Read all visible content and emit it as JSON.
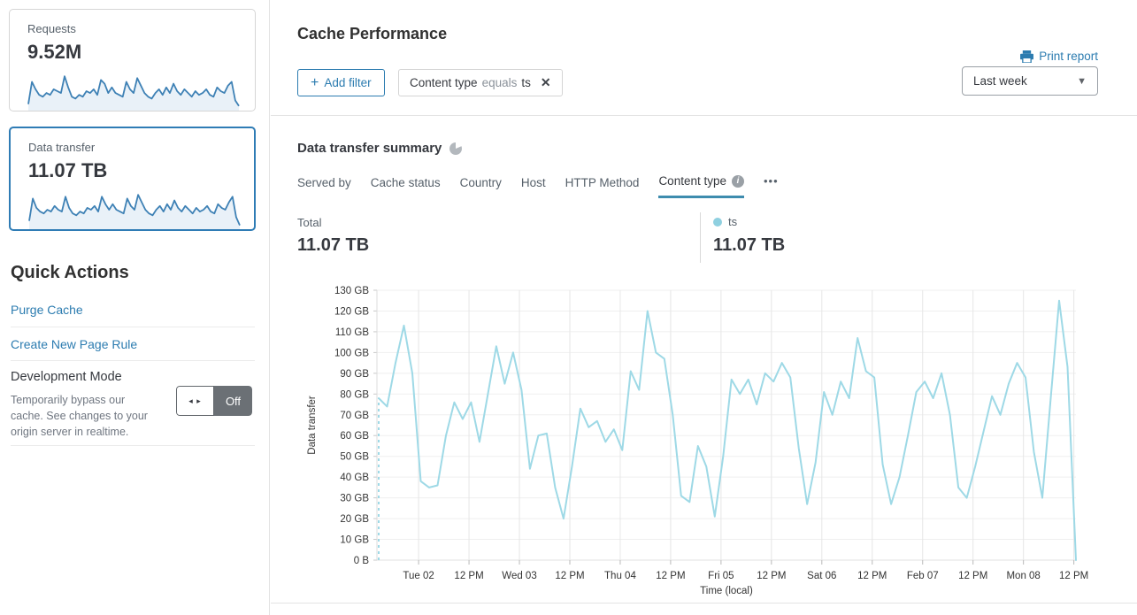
{
  "sidebar": {
    "cards": [
      {
        "label": "Requests",
        "value": "9.52M",
        "sparkline": [
          15,
          75,
          55,
          40,
          35,
          45,
          40,
          55,
          50,
          45,
          90,
          60,
          35,
          30,
          40,
          35,
          50,
          45,
          55,
          40,
          80,
          70,
          45,
          60,
          45,
          40,
          35,
          75,
          55,
          45,
          85,
          65,
          45,
          35,
          30,
          45,
          55,
          40,
          60,
          45,
          70,
          50,
          40,
          55,
          45,
          35,
          50,
          40,
          45,
          55,
          40,
          35,
          60,
          50,
          45,
          65,
          75,
          25,
          10
        ]
      },
      {
        "label": "Data transfer",
        "value": "11.07 TB",
        "sparkline": [
          20,
          80,
          55,
          45,
          40,
          50,
          45,
          60,
          50,
          45,
          85,
          55,
          40,
          35,
          45,
          40,
          55,
          50,
          60,
          45,
          85,
          65,
          50,
          65,
          50,
          45,
          40,
          80,
          60,
          50,
          90,
          70,
          50,
          40,
          35,
          50,
          60,
          45,
          65,
          50,
          75,
          55,
          45,
          60,
          50,
          40,
          55,
          45,
          50,
          60,
          45,
          40,
          65,
          55,
          50,
          70,
          85,
          30,
          8
        ]
      }
    ],
    "sparkline_color": "#3e81b5",
    "sparkline_fill": "#e9f1f8",
    "quick_actions": {
      "title": "Quick Actions",
      "links": [
        {
          "label": "Purge Cache"
        },
        {
          "label": "Create New Page Rule"
        }
      ],
      "dev_mode": {
        "title": "Development Mode",
        "description": "Temporarily bypass our cache. See changes to your origin server in realtime.",
        "toggle_state": "Off",
        "toggle_arrows": "◂ ▸"
      }
    }
  },
  "header": {
    "title": "Cache Performance",
    "print_label": "Print report",
    "add_filter_plus": "+",
    "add_filter_label": "Add filter",
    "filter_chip": {
      "field": "Content type",
      "operator": "equals",
      "value": "ts",
      "close_glyph": "✕"
    },
    "range_selected": "Last week",
    "caret_glyph": "▼"
  },
  "summary": {
    "title": "Data transfer summary",
    "tabs": [
      {
        "label": "Served by",
        "active": false
      },
      {
        "label": "Cache status",
        "active": false
      },
      {
        "label": "Country",
        "active": false
      },
      {
        "label": "Host",
        "active": false
      },
      {
        "label": "HTTP Method",
        "active": false
      },
      {
        "label": "Content type",
        "active": true
      }
    ],
    "info_glyph": "i",
    "more_label": "•••",
    "total_label": "Total",
    "total_value": "11.07 TB",
    "legend": {
      "name": "ts",
      "value": "11.07 TB",
      "color": "#8fd0e0"
    }
  },
  "chart_data": {
    "type": "line",
    "title": "Data transfer summary",
    "xlabel": "Time (local)",
    "ylabel": "Data transfer",
    "ylim_gb": [
      0,
      130
    ],
    "y_tick_step_gb": 10,
    "y_tick_labels": [
      "0 B",
      "10 GB",
      "20 GB",
      "30 GB",
      "40 GB",
      "50 GB",
      "60 GB",
      "70 GB",
      "80 GB",
      "90 GB",
      "100 GB",
      "110 GB",
      "120 GB",
      "130 GB"
    ],
    "x_tick_labels": [
      "Tue 02",
      "12 PM",
      "Wed 03",
      "12 PM",
      "Thu 04",
      "12 PM",
      "Fri 05",
      "12 PM",
      "Sat 06",
      "12 PM",
      "Feb 07",
      "12 PM",
      "Mon 08",
      "12 PM"
    ],
    "x_tick_interval_hours": 12,
    "first_tick_offset_hours": 9.5,
    "grid": true,
    "leading_dashed_drop": true,
    "series": [
      {
        "name": "ts",
        "color": "#9ed9e6",
        "point_interval_hours": 2,
        "values_gb": [
          78,
          74,
          95,
          113,
          90,
          38,
          35,
          36,
          60,
          76,
          68,
          76,
          57,
          80,
          103,
          85,
          100,
          82,
          44,
          60,
          61,
          35,
          20,
          45,
          73,
          64,
          67,
          57,
          63,
          53,
          91,
          82,
          120,
          100,
          97,
          70,
          31,
          28,
          55,
          45,
          21,
          50,
          87,
          80,
          87,
          75,
          90,
          86,
          95,
          88,
          54,
          27,
          47,
          81,
          70,
          86,
          78,
          107,
          91,
          88,
          46,
          27,
          40,
          60,
          81,
          86,
          78,
          90,
          70,
          35,
          30,
          45,
          62,
          79,
          70,
          85,
          95,
          88,
          52,
          30,
          78,
          125,
          93,
          0
        ]
      }
    ]
  }
}
